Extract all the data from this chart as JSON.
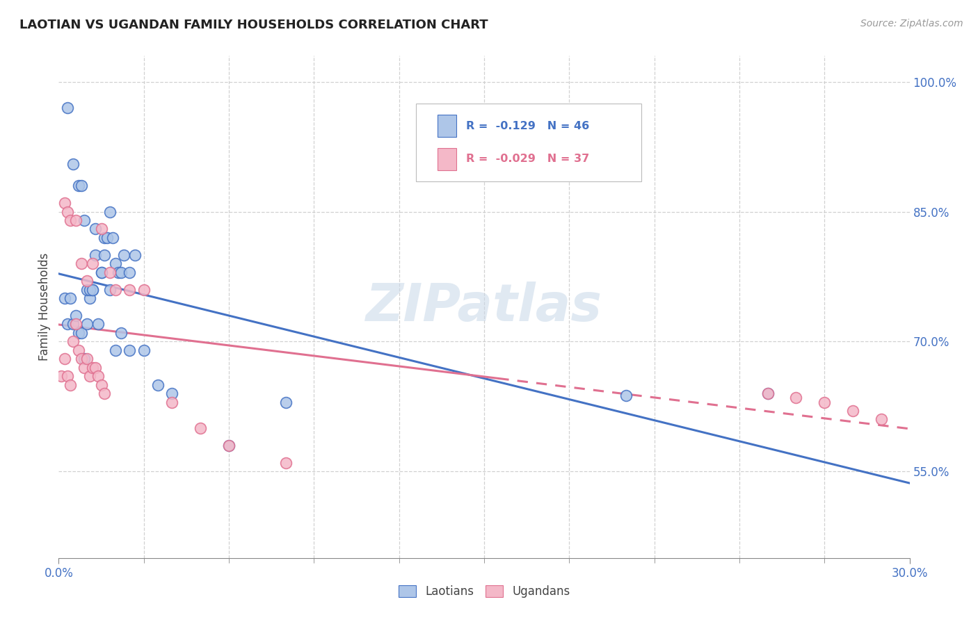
{
  "title": "LAOTIAN VS UGANDAN FAMILY HOUSEHOLDS CORRELATION CHART",
  "source": "Source: ZipAtlas.com",
  "ylabel": "Family Households",
  "legend_r1": "-0.129",
  "legend_n1": "N = 46",
  "legend_r2": "-0.029",
  "legend_n2": "N = 37",
  "color_laotian": "#aec6e8",
  "color_ugandan": "#f4b8c8",
  "color_line_laotian": "#4472c4",
  "color_line_ugandan": "#e07090",
  "watermark": "ZIPatlas",
  "laotian_x": [
    0.002,
    0.003,
    0.004,
    0.005,
    0.006,
    0.007,
    0.008,
    0.009,
    0.01,
    0.011,
    0.012,
    0.013,
    0.014,
    0.015,
    0.016,
    0.017,
    0.018,
    0.019,
    0.02,
    0.021,
    0.022,
    0.023,
    0.025,
    0.027,
    0.003,
    0.005,
    0.007,
    0.008,
    0.009,
    0.01,
    0.011,
    0.012,
    0.013,
    0.015,
    0.016,
    0.018,
    0.02,
    0.022,
    0.025,
    0.03,
    0.035,
    0.04,
    0.06,
    0.08,
    0.2,
    0.25
  ],
  "laotian_y": [
    0.75,
    0.72,
    0.75,
    0.72,
    0.73,
    0.71,
    0.71,
    0.68,
    0.72,
    0.75,
    0.76,
    0.8,
    0.72,
    0.78,
    0.82,
    0.82,
    0.85,
    0.82,
    0.79,
    0.78,
    0.78,
    0.8,
    0.78,
    0.8,
    0.97,
    0.905,
    0.88,
    0.88,
    0.84,
    0.76,
    0.76,
    0.76,
    0.83,
    0.78,
    0.8,
    0.76,
    0.69,
    0.71,
    0.69,
    0.69,
    0.65,
    0.64,
    0.58,
    0.63,
    0.638,
    0.64
  ],
  "ugandan_x": [
    0.001,
    0.002,
    0.003,
    0.004,
    0.005,
    0.006,
    0.007,
    0.008,
    0.009,
    0.01,
    0.011,
    0.012,
    0.013,
    0.014,
    0.015,
    0.016,
    0.002,
    0.003,
    0.004,
    0.006,
    0.008,
    0.01,
    0.012,
    0.015,
    0.018,
    0.02,
    0.025,
    0.03,
    0.04,
    0.05,
    0.06,
    0.08,
    0.25,
    0.26,
    0.27,
    0.28,
    0.29
  ],
  "ugandan_y": [
    0.66,
    0.68,
    0.66,
    0.65,
    0.7,
    0.72,
    0.69,
    0.68,
    0.67,
    0.68,
    0.66,
    0.67,
    0.67,
    0.66,
    0.65,
    0.64,
    0.86,
    0.85,
    0.84,
    0.84,
    0.79,
    0.77,
    0.79,
    0.83,
    0.78,
    0.76,
    0.76,
    0.76,
    0.63,
    0.6,
    0.58,
    0.56,
    0.64,
    0.635,
    0.63,
    0.62,
    0.61
  ],
  "xmin": 0.0,
  "xmax": 0.3,
  "ymin": 0.45,
  "ymax": 1.03,
  "background_color": "#ffffff",
  "grid_color": "#cccccc",
  "xtick_major": [
    0.0,
    0.3
  ],
  "xtick_major_labels": [
    "0.0%",
    "30.0%"
  ],
  "ytick_vals": [
    0.55,
    0.7,
    0.85,
    1.0
  ],
  "ytick_labels": [
    "55.0%",
    "70.0%",
    "85.0%",
    "100.0%"
  ]
}
